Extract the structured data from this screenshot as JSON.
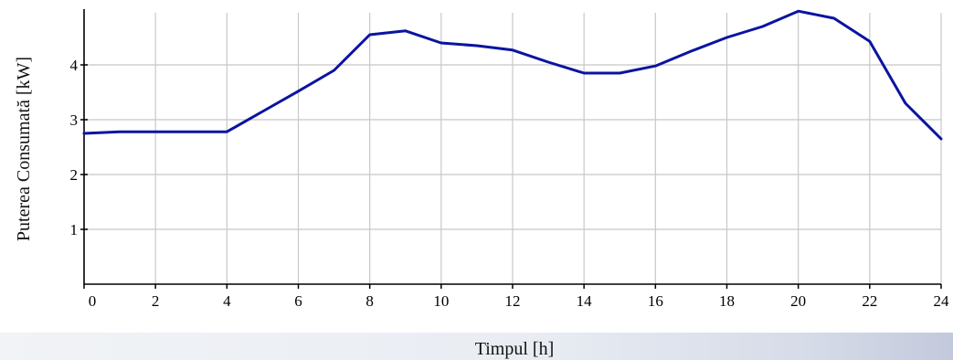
{
  "chart_data": {
    "type": "line",
    "title": "",
    "xlabel": "Timpul [h]",
    "ylabel": "Puterea Consumată [kW]",
    "xlim": [
      0,
      24
    ],
    "ylim": [
      0,
      5
    ],
    "grid": true,
    "x_ticks": [
      "0",
      "2",
      "4",
      "6",
      "8",
      "10",
      "12",
      "14",
      "16",
      "18",
      "20",
      "22",
      "24"
    ],
    "y_ticks": [
      "1",
      "2",
      "3",
      "4"
    ],
    "series": [
      {
        "color": "#0a14a0",
        "x": [
          0,
          1,
          2,
          3,
          4,
          5,
          6,
          7,
          8,
          9,
          10,
          11,
          12,
          13,
          14,
          15,
          16,
          17,
          18,
          19,
          20,
          21,
          22,
          23,
          24
        ],
        "y": [
          2.75,
          2.78,
          2.78,
          2.78,
          2.78,
          3.15,
          3.52,
          3.9,
          4.55,
          4.62,
          4.4,
          4.35,
          4.27,
          4.05,
          3.85,
          3.85,
          3.98,
          4.25,
          4.5,
          4.7,
          4.98,
          4.85,
          4.43,
          3.3,
          2.65
        ]
      }
    ]
  }
}
